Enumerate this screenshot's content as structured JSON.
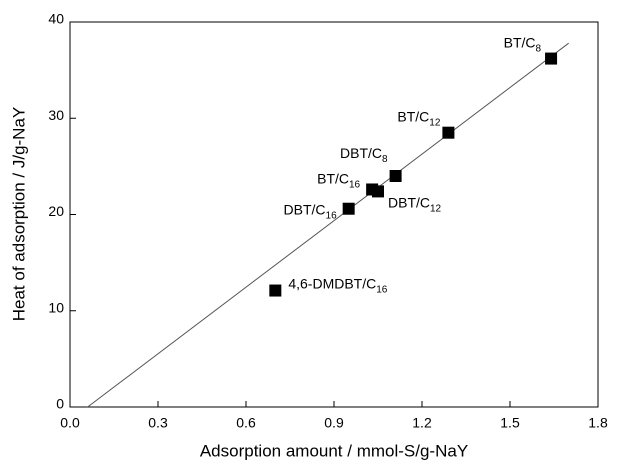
{
  "chart_data": {
    "type": "scatter",
    "x_label": "Adsorption amount / mmol-S/g-NaY",
    "y_label": "Heat of adsorption / J/g-NaY",
    "x": [
      0.7,
      0.95,
      1.03,
      1.05,
      1.11,
      1.29,
      1.64
    ],
    "values": [
      12.1,
      20.6,
      22.6,
      22.4,
      24.0,
      28.5,
      36.2
    ],
    "labels": [
      {
        "main": "4,6-DMDBT/C",
        "sub": "16"
      },
      {
        "main": "DBT/C",
        "sub": "16"
      },
      {
        "main": "BT/C",
        "sub": "16"
      },
      {
        "main": "DBT/C",
        "sub": "12"
      },
      {
        "main": "DBT/C",
        "sub": "8"
      },
      {
        "main": "BT/C",
        "sub": "12"
      },
      {
        "main": "BT/C",
        "sub": "8"
      }
    ],
    "color": "#000000",
    "fit_line": {
      "x": [
        0.06,
        1.7
      ],
      "y": [
        0,
        37.8
      ],
      "color": "#555555"
    },
    "xlim": [
      0,
      1.8
    ],
    "xticks": [
      {
        "value": 0,
        "label": "0.0"
      },
      0.3,
      0.6,
      0.9,
      1.2,
      1.5,
      1.8
    ],
    "ylim": [
      0,
      40
    ],
    "yticks": [
      0,
      10,
      20,
      30,
      40
    ]
  }
}
